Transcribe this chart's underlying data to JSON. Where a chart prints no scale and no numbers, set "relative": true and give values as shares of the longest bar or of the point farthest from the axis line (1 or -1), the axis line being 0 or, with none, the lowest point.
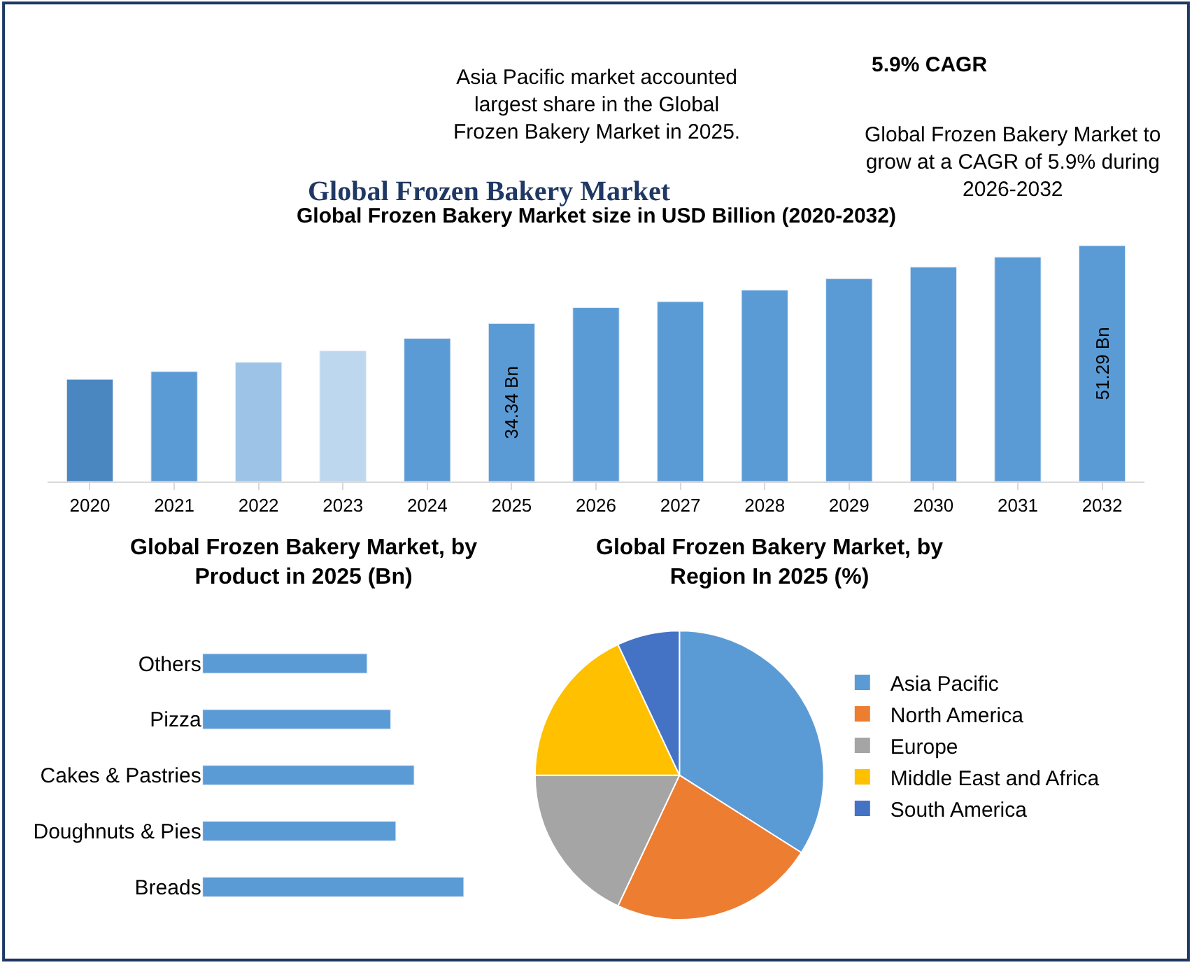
{
  "chart_data": [
    {
      "type": "bar",
      "title": "Global Frozen Bakery Market size in USD Billion (2020-2032)",
      "categories": [
        "2020",
        "2021",
        "2022",
        "2023",
        "2024",
        "2025",
        "2026",
        "2027",
        "2028",
        "2029",
        "2030",
        "2031",
        "2032"
      ],
      "values": [
        22.2,
        23.9,
        25.9,
        28.4,
        31.1,
        34.34,
        37.8,
        39.1,
        41.6,
        44.1,
        46.6,
        48.8,
        51.29
      ],
      "colors": [
        "#4a86c0",
        "#5b9bd5",
        "#9dc3e6",
        "#bdd7ee",
        "#5b9bd5",
        "#5b9bd5",
        "#5b9bd5",
        "#5b9bd5",
        "#5b9bd5",
        "#5b9bd5",
        "#5b9bd5",
        "#5b9bd5",
        "#5b9bd5"
      ],
      "value_labels": [
        null,
        null,
        null,
        null,
        null,
        "34.34 Bn",
        null,
        null,
        null,
        null,
        null,
        null,
        "51.29 Bn"
      ],
      "annotations": [
        "Asia Pacific market accounted largest share in the Global Frozen Bakery Market in 2025.",
        "5.9% CAGR",
        "Global Frozen Bakery Market to grow at a CAGR of 5.9% during 2026-2032",
        "Global Frozen Bakery Market"
      ]
    },
    {
      "type": "bar",
      "orientation": "horizontal",
      "relative": true,
      "title": "Global Frozen Bakery Market, by Product in 2025 (Bn)",
      "categories": [
        "Others",
        "Pizza",
        "Cakes & Pastries",
        "Doughnuts & Pies",
        "Breads"
      ],
      "values": [
        0.63,
        0.72,
        0.81,
        0.74,
        1
      ],
      "color": "#5b9bd5"
    },
    {
      "type": "pie",
      "title": "Global Frozen Bakery Market, by Region In 2025 (%)",
      "legend": "right",
      "categories": [
        "Asia Pacific",
        "North America",
        "Europe",
        "Middle East and Africa",
        "South America"
      ],
      "values": [
        34,
        23,
        18,
        18,
        7
      ],
      "colors": [
        "#5b9bd5",
        "#ed7d31",
        "#a5a5a5",
        "#ffc000",
        "#4472c4"
      ]
    }
  ]
}
